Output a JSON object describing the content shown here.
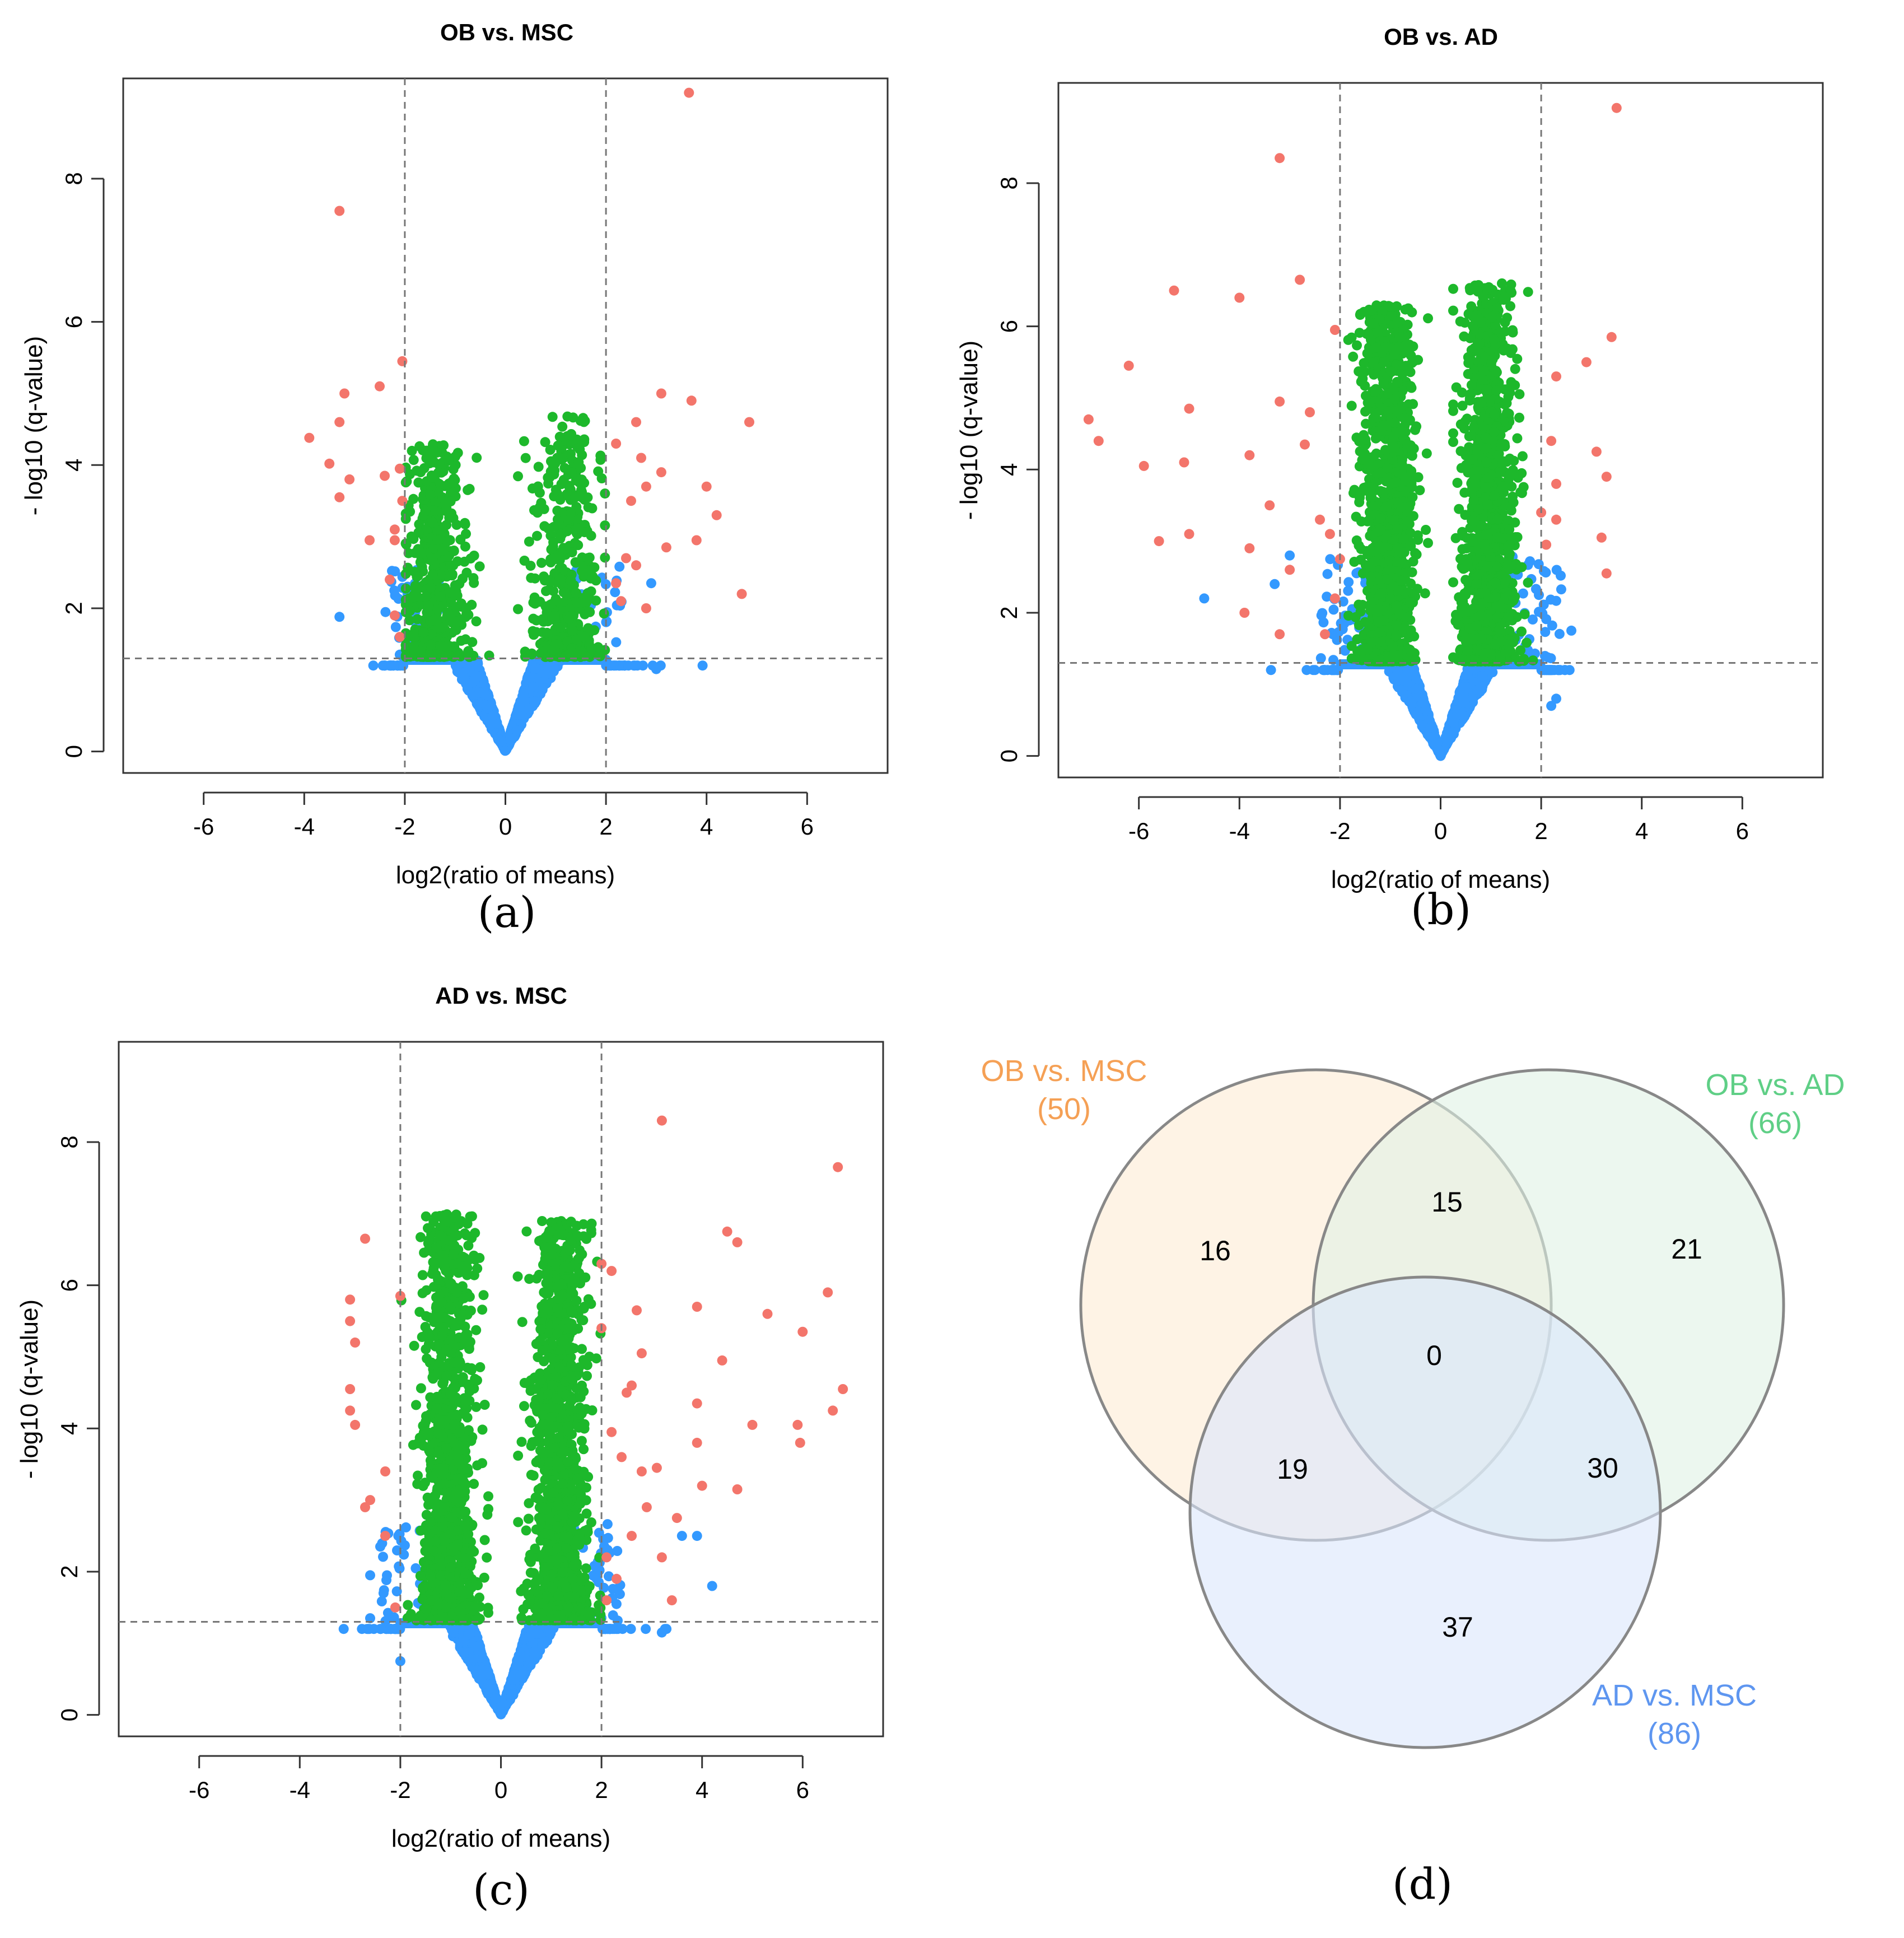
{
  "colors": {
    "not_sig": "#3399ff",
    "sig_q": "#1db82b",
    "sig_fc": "#f3756b",
    "guide": "#777777"
  },
  "chart_data": [
    {
      "id": "a",
      "type": "scatter",
      "title": "OB vs. MSC",
      "xlabel": "log2(ratio of means)",
      "ylabel": "- log10 (q-value)",
      "xlim": [
        -7.6,
        7.6
      ],
      "ylim": [
        -0.3,
        9.4
      ],
      "xticks": [
        -6,
        -4,
        -2,
        0,
        2,
        4,
        6
      ],
      "yticks": [
        0,
        2,
        4,
        6,
        8
      ],
      "vlines": [
        -2,
        2
      ],
      "hline": 1.3,
      "caption": "(a)",
      "gen": {
        "seed": 11,
        "leftN": 520,
        "rightN": 450,
        "leftCore": 1.4,
        "rightCore": 1.2,
        "spread": 0.55,
        "ymaxL": 4.3,
        "ymaxR": 4.7,
        "blueSpill": 60,
        "blueSpillMaxY": 2.6
      },
      "outliers": [
        [
          -3.3,
          7.55
        ],
        [
          -2.05,
          5.45
        ],
        [
          -2.5,
          5.1
        ],
        [
          -3.2,
          5.0
        ],
        [
          -3.9,
          4.38
        ],
        [
          -3.3,
          4.6
        ],
        [
          -3.5,
          4.02
        ],
        [
          -3.1,
          3.8
        ],
        [
          -3.3,
          3.55
        ],
        [
          -2.4,
          3.85
        ],
        [
          -2.1,
          3.95
        ],
        [
          -2.05,
          3.5
        ],
        [
          -2.2,
          3.1
        ],
        [
          -2.7,
          2.95
        ],
        [
          -2.2,
          2.95
        ],
        [
          -2.3,
          2.4
        ],
        [
          -2.2,
          1.9
        ],
        [
          -2.1,
          1.6
        ],
        [
          3.65,
          9.2
        ],
        [
          4.85,
          4.6
        ],
        [
          3.1,
          5.0
        ],
        [
          3.7,
          4.9
        ],
        [
          2.6,
          4.6
        ],
        [
          2.2,
          4.3
        ],
        [
          2.7,
          4.1
        ],
        [
          3.1,
          3.9
        ],
        [
          4.0,
          3.7
        ],
        [
          2.8,
          3.7
        ],
        [
          2.5,
          3.5
        ],
        [
          4.2,
          3.3
        ],
        [
          3.2,
          2.85
        ],
        [
          3.8,
          2.95
        ],
        [
          2.4,
          2.7
        ],
        [
          2.6,
          2.6
        ],
        [
          2.2,
          2.35
        ],
        [
          2.3,
          2.1
        ],
        [
          2.8,
          2.0
        ],
        [
          4.7,
          2.2
        ]
      ],
      "outliers_blue": [
        [
          -3.3,
          1.88
        ],
        [
          2.9,
          2.35
        ],
        [
          3.0,
          1.15
        ]
      ]
    },
    {
      "id": "b",
      "type": "scatter",
      "title": "OB vs. AD",
      "xlabel": "log2(ratio of means)",
      "ylabel": "- log10 (q-value)",
      "xlim": [
        -7.6,
        7.6
      ],
      "ylim": [
        -0.3,
        9.4
      ],
      "xticks": [
        -6,
        -4,
        -2,
        0,
        2,
        4,
        6
      ],
      "yticks": [
        0,
        2,
        4,
        6,
        8
      ],
      "vlines": [
        -2,
        2
      ],
      "hline": 1.3,
      "caption": "(b)",
      "gen": {
        "seed": 23,
        "leftN": 1250,
        "rightN": 1200,
        "leftCore": 1.05,
        "rightCore": 0.95,
        "spread": 0.45,
        "ymaxL": 6.3,
        "ymaxR": 6.6,
        "blueSpill": 90,
        "blueSpillMaxY": 2.8
      },
      "outliers": [
        [
          3.5,
          9.05
        ],
        [
          -3.2,
          8.35
        ],
        [
          -2.8,
          6.65
        ],
        [
          -5.3,
          6.5
        ],
        [
          -4.0,
          6.4
        ],
        [
          -6.2,
          5.45
        ],
        [
          -2.1,
          5.95
        ],
        [
          -5.0,
          4.85
        ],
        [
          -3.2,
          4.95
        ],
        [
          -7.0,
          4.7
        ],
        [
          -6.8,
          4.4
        ],
        [
          -2.6,
          4.8
        ],
        [
          -5.9,
          4.05
        ],
        [
          -5.1,
          4.1
        ],
        [
          -3.8,
          4.2
        ],
        [
          -2.7,
          4.35
        ],
        [
          -5.0,
          3.1
        ],
        [
          -5.6,
          3.0
        ],
        [
          -3.4,
          3.5
        ],
        [
          -2.4,
          3.3
        ],
        [
          -2.2,
          3.1
        ],
        [
          -3.8,
          2.9
        ],
        [
          -2.0,
          2.75
        ],
        [
          -3.0,
          2.6
        ],
        [
          -2.1,
          2.2
        ],
        [
          -3.9,
          2.0
        ],
        [
          -3.2,
          1.7
        ],
        [
          -2.3,
          1.7
        ],
        [
          3.4,
          5.85
        ],
        [
          2.3,
          5.3
        ],
        [
          2.2,
          4.4
        ],
        [
          3.1,
          4.25
        ],
        [
          3.3,
          3.9
        ],
        [
          2.3,
          3.8
        ],
        [
          2.0,
          3.4
        ],
        [
          2.3,
          3.3
        ],
        [
          3.2,
          3.05
        ],
        [
          3.3,
          2.55
        ],
        [
          2.1,
          2.95
        ],
        [
          2.9,
          5.5
        ]
      ],
      "outliers_blue": [
        [
          -4.7,
          2.2
        ],
        [
          -3.0,
          2.8
        ],
        [
          2.6,
          1.75
        ],
        [
          2.3,
          0.8
        ],
        [
          2.2,
          0.7
        ],
        [
          -3.3,
          2.4
        ]
      ]
    },
    {
      "id": "c",
      "type": "scatter",
      "title": "AD vs. MSC",
      "xlabel": "log2(ratio of means)",
      "ylabel": "- log10 (q-value)",
      "xlim": [
        -7.6,
        7.6
      ],
      "ylim": [
        -0.3,
        9.4
      ],
      "xticks": [
        -6,
        -4,
        -2,
        0,
        2,
        4,
        6
      ],
      "yticks": [
        0,
        2,
        4,
        6,
        8
      ],
      "vlines": [
        -2,
        2
      ],
      "hline": 1.3,
      "caption": "(c)",
      "gen": {
        "seed": 37,
        "leftN": 1200,
        "rightN": 1300,
        "leftCore": 1.05,
        "rightCore": 1.15,
        "spread": 0.45,
        "ymaxL": 7.0,
        "ymaxR": 6.9,
        "blueSpill": 90,
        "blueSpillMaxY": 2.7
      },
      "outliers": [
        [
          3.2,
          8.3
        ],
        [
          6.7,
          7.65
        ],
        [
          -2.7,
          6.65
        ],
        [
          4.5,
          6.75
        ],
        [
          4.7,
          6.6
        ],
        [
          2.0,
          6.3
        ],
        [
          2.2,
          6.2
        ],
        [
          -3.0,
          5.8
        ],
        [
          -2.0,
          5.85
        ],
        [
          6.5,
          5.9
        ],
        [
          -3.0,
          5.5
        ],
        [
          3.9,
          5.7
        ],
        [
          5.3,
          5.6
        ],
        [
          2.7,
          5.65
        ],
        [
          -2.9,
          5.2
        ],
        [
          6.0,
          5.35
        ],
        [
          2.0,
          5.4
        ],
        [
          2.8,
          5.05
        ],
        [
          4.4,
          4.95
        ],
        [
          2.6,
          4.6
        ],
        [
          2.5,
          4.5
        ],
        [
          6.8,
          4.55
        ],
        [
          -3.0,
          4.55
        ],
        [
          -3.0,
          4.25
        ],
        [
          3.9,
          4.35
        ],
        [
          6.6,
          4.25
        ],
        [
          -2.9,
          4.05
        ],
        [
          5.0,
          4.05
        ],
        [
          5.9,
          4.05
        ],
        [
          5.95,
          3.8
        ],
        [
          3.9,
          3.8
        ],
        [
          2.2,
          3.95
        ],
        [
          2.4,
          3.6
        ],
        [
          2.8,
          3.4
        ],
        [
          3.1,
          3.45
        ],
        [
          -2.3,
          3.4
        ],
        [
          4.0,
          3.2
        ],
        [
          4.7,
          3.15
        ],
        [
          -2.6,
          3.0
        ],
        [
          -2.7,
          2.9
        ],
        [
          2.9,
          2.9
        ],
        [
          3.5,
          2.75
        ],
        [
          -2.3,
          2.5
        ],
        [
          2.6,
          2.5
        ],
        [
          2.1,
          2.2
        ],
        [
          3.2,
          2.2
        ],
        [
          2.3,
          1.9
        ],
        [
          3.4,
          1.6
        ],
        [
          -2.1,
          1.5
        ],
        [
          2.1,
          1.6
        ]
      ],
      "outliers_blue": [
        [
          3.9,
          2.5
        ],
        [
          3.6,
          2.5
        ],
        [
          4.2,
          1.8
        ],
        [
          3.2,
          1.15
        ],
        [
          -2.6,
          1.95
        ],
        [
          -2.6,
          1.35
        ],
        [
          -2.0,
          0.75
        ]
      ]
    },
    {
      "id": "d",
      "type": "venn",
      "caption": "(d)",
      "sets": [
        {
          "name": "OB vs. MSC",
          "size_label": "(50)",
          "color": "#f5a055",
          "fill": "#fdebd3"
        },
        {
          "name": "OB vs. AD",
          "size_label": "(66)",
          "color": "#5fcf86",
          "fill": "#dff2e4"
        },
        {
          "name": "AD vs. MSC",
          "size_label": "(86)",
          "color": "#5e96f0",
          "fill": "#dbe6fb"
        }
      ],
      "regions": {
        "msc_only": "16",
        "ad_only": "21",
        "admsc_only": "37",
        "msc_ad": "15",
        "msc_admsc": "19",
        "ad_admsc": "30",
        "all": "0"
      }
    }
  ]
}
